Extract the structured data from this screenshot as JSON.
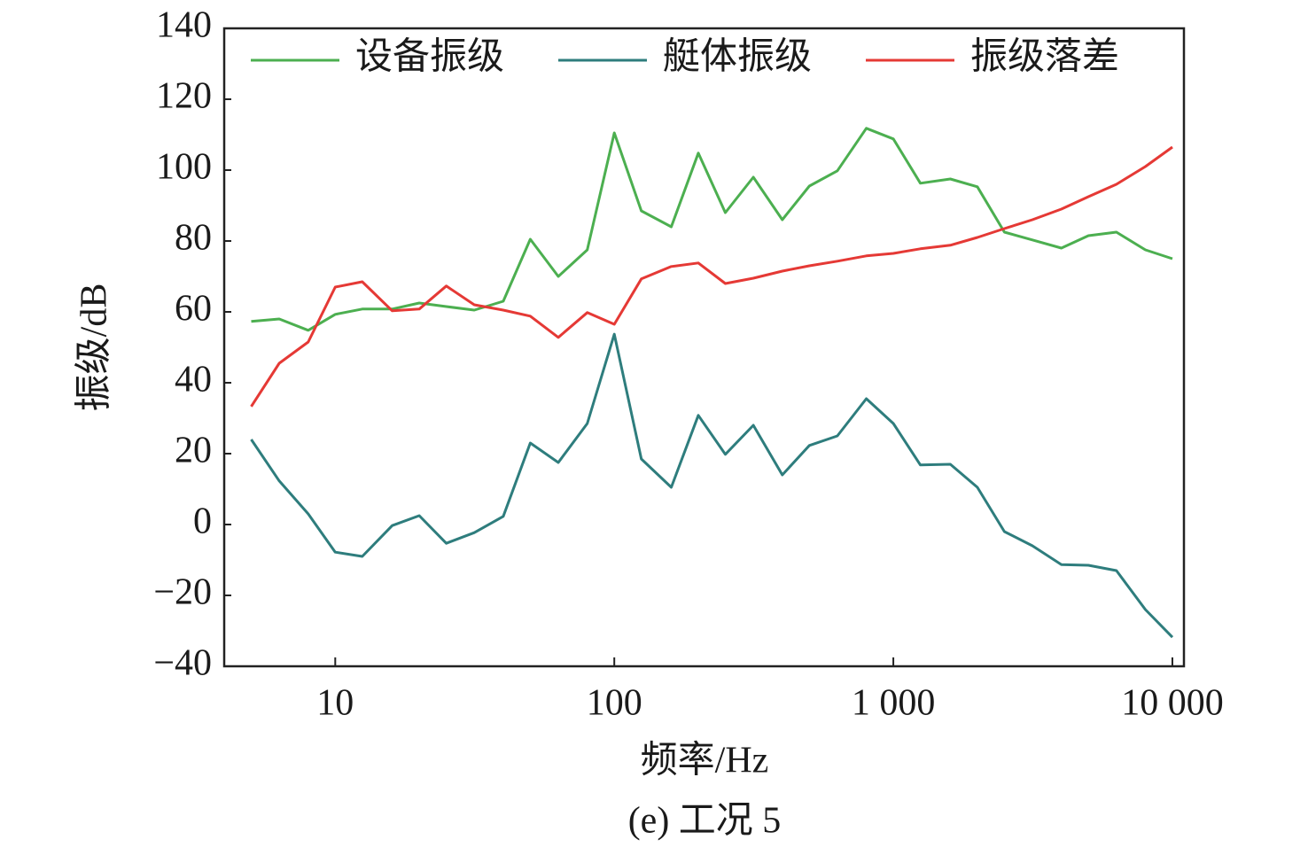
{
  "chart_data": {
    "type": "line",
    "caption": "(e) 工况 5",
    "x_label": "频率/Hz",
    "y_label": "振级/dB",
    "x_scale": "log",
    "x": [
      5,
      6.3,
      8,
      10,
      12.5,
      16,
      20,
      25,
      31.5,
      40,
      50,
      63,
      80,
      100,
      125,
      160,
      200,
      250,
      315,
      400,
      500,
      630,
      800,
      1000,
      1250,
      1600,
      2000,
      2500,
      3150,
      4000,
      5000,
      6300,
      8000,
      10000
    ],
    "series": [
      {
        "name": "设备振级",
        "color": "#4caf50",
        "values": [
          57.3,
          58,
          54.8,
          59.3,
          60.8,
          60.8,
          62.5,
          61.5,
          60.5,
          63,
          80.5,
          70,
          77.5,
          110.5,
          88.5,
          84,
          104.8,
          88,
          98,
          86,
          95.5,
          99.8,
          111.8,
          108.8,
          96.3,
          97.5,
          95.3,
          82.5,
          80.3,
          78,
          81.5,
          82.5,
          77.5,
          75
        ]
      },
      {
        "name": "艇体振级",
        "color": "#2e7d7d",
        "values": [
          24,
          12.3,
          3,
          -7.8,
          -9,
          -0.3,
          2.5,
          -5.3,
          -2.3,
          2.3,
          23,
          17.5,
          28.5,
          53.7,
          18.5,
          10.5,
          30.8,
          19.8,
          28,
          14,
          22.3,
          25,
          35.5,
          28.5,
          16.8,
          17,
          10.5,
          -2,
          -6,
          -11.3,
          -11.5,
          -13,
          -24,
          -31.8
        ]
      },
      {
        "name": "振级落差",
        "color": "#e53935",
        "values": [
          33.3,
          45.5,
          51.5,
          67,
          68.5,
          60.3,
          60.8,
          67.3,
          62,
          60.5,
          58.8,
          52.8,
          59.8,
          56.5,
          69.3,
          72.8,
          73.8,
          68,
          69.5,
          71.5,
          73,
          74.3,
          75.8,
          76.5,
          77.8,
          78.8,
          81,
          83.5,
          86,
          89,
          92.5,
          96,
          101,
          106.5
        ]
      }
    ],
    "xlim": [
      4,
      11000
    ],
    "xticks": [
      10,
      100,
      {
        "value": 1000,
        "label": "1 000"
      },
      {
        "value": 10000,
        "label": "10 000"
      }
    ],
    "ylim": [
      -40,
      140
    ],
    "yticks": [
      {
        "value": -40,
        "label": "−40"
      },
      {
        "value": -20,
        "label": "−20"
      },
      0,
      20,
      40,
      60,
      80,
      100,
      120,
      140
    ],
    "legend": "top"
  }
}
